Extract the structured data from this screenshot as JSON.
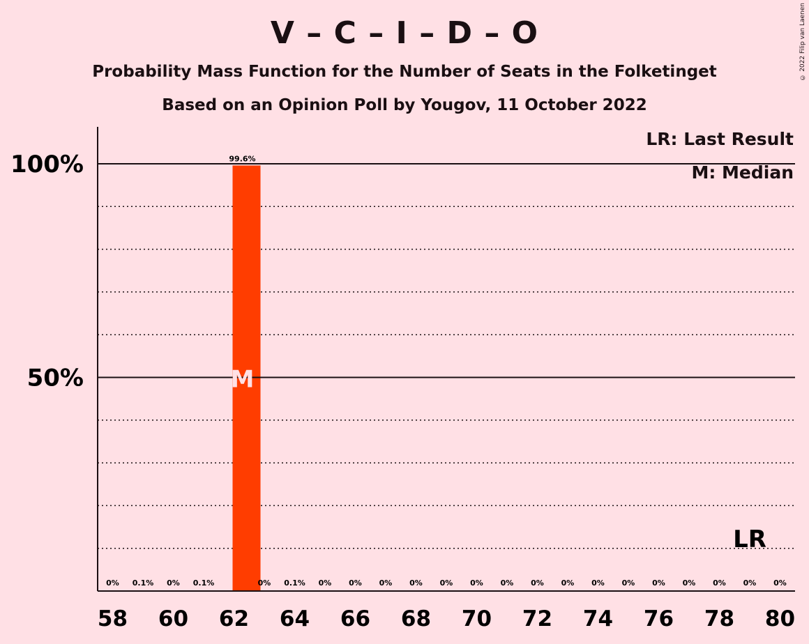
{
  "title": "V – C – I – D – O",
  "subtitle": "Probability Mass Function for the Number of Seats in the Folketinget",
  "subtitle2": "Based on an Opinion Poll by Yougov, 11 October 2022",
  "copyright": "© 2022 Filip van Laenen",
  "legend": {
    "last_result": "LR: Last Result",
    "median": "M: Median"
  },
  "colors": {
    "bar": "#FF3D00",
    "background": "#FFE0E5",
    "text": "#1A0F12"
  },
  "chart_data": {
    "type": "bar",
    "categories": [
      58,
      59,
      60,
      61,
      62,
      63,
      64,
      65,
      66,
      67,
      68,
      69,
      70,
      71,
      72,
      73,
      74,
      75,
      76,
      77,
      78,
      79,
      80
    ],
    "values": [
      0,
      0.1,
      0,
      0.1,
      99.6,
      0,
      0.1,
      0,
      0,
      0,
      0,
      0,
      0,
      0,
      0,
      0,
      0,
      0,
      0,
      0,
      0,
      0,
      0
    ],
    "value_labels": [
      "0%",
      "0.1%",
      "0%",
      "0.1%",
      "99.6%",
      "0%",
      "0.1%",
      "0%",
      "0%",
      "0%",
      "0%",
      "0%",
      "0%",
      "0%",
      "0%",
      "0%",
      "0%",
      "0%",
      "0%",
      "0%",
      "0%",
      "0%",
      "0%"
    ],
    "x_tick_labels": [
      "58",
      "60",
      "62",
      "64",
      "66",
      "68",
      "70",
      "72",
      "74",
      "76",
      "78",
      "80"
    ],
    "x_tick_values": [
      58,
      60,
      62,
      64,
      66,
      68,
      70,
      72,
      74,
      76,
      78,
      80
    ],
    "y_tick_labels": [
      "50%",
      "100%"
    ],
    "y_tick_values": [
      50,
      100
    ],
    "ylim": [
      0,
      100
    ],
    "median": 62,
    "median_label": "M",
    "last_result": 79,
    "last_result_label": "LR",
    "grid": true
  }
}
